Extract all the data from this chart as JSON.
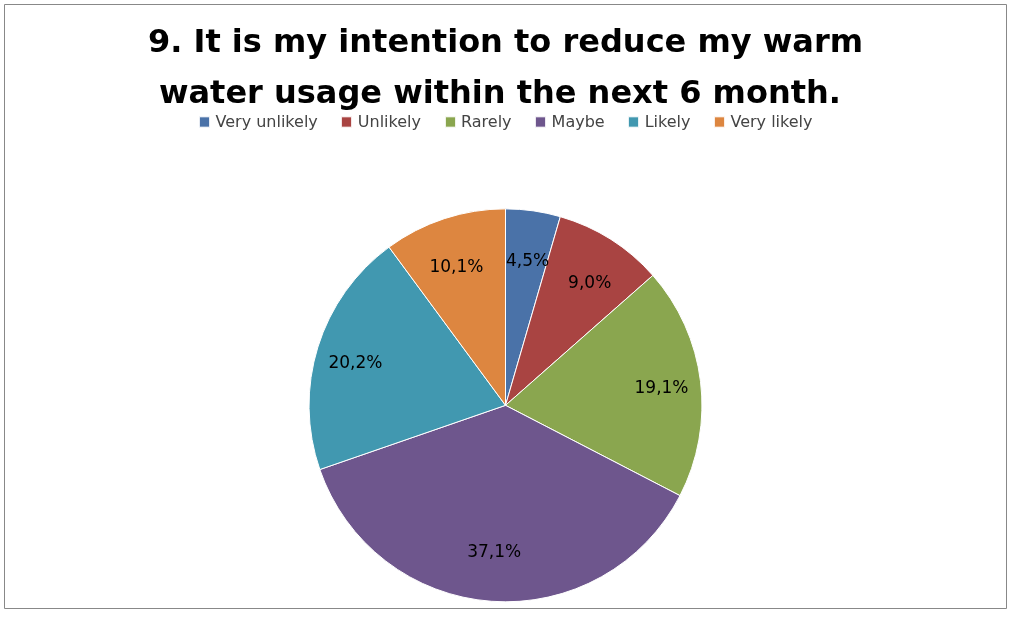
{
  "chart_data": {
    "type": "pie",
    "title": "9. It is my intention to reduce my warm water usage within the next 6  month.",
    "categories": [
      "Very unlikely",
      "Unlikely",
      "Rarely",
      "Maybe",
      "Likely",
      "Very likely"
    ],
    "values": [
      4.5,
      9.0,
      19.1,
      37.1,
      20.2,
      10.1
    ],
    "value_labels": [
      "4,5%",
      "9,0%",
      "19,1%",
      "37,1%",
      "20,2%",
      "10,1%"
    ],
    "colors": [
      "#4a72a8",
      "#a94442",
      "#8aa64f",
      "#6e568d",
      "#4198b0",
      "#dd8640"
    ],
    "legend": "top"
  }
}
